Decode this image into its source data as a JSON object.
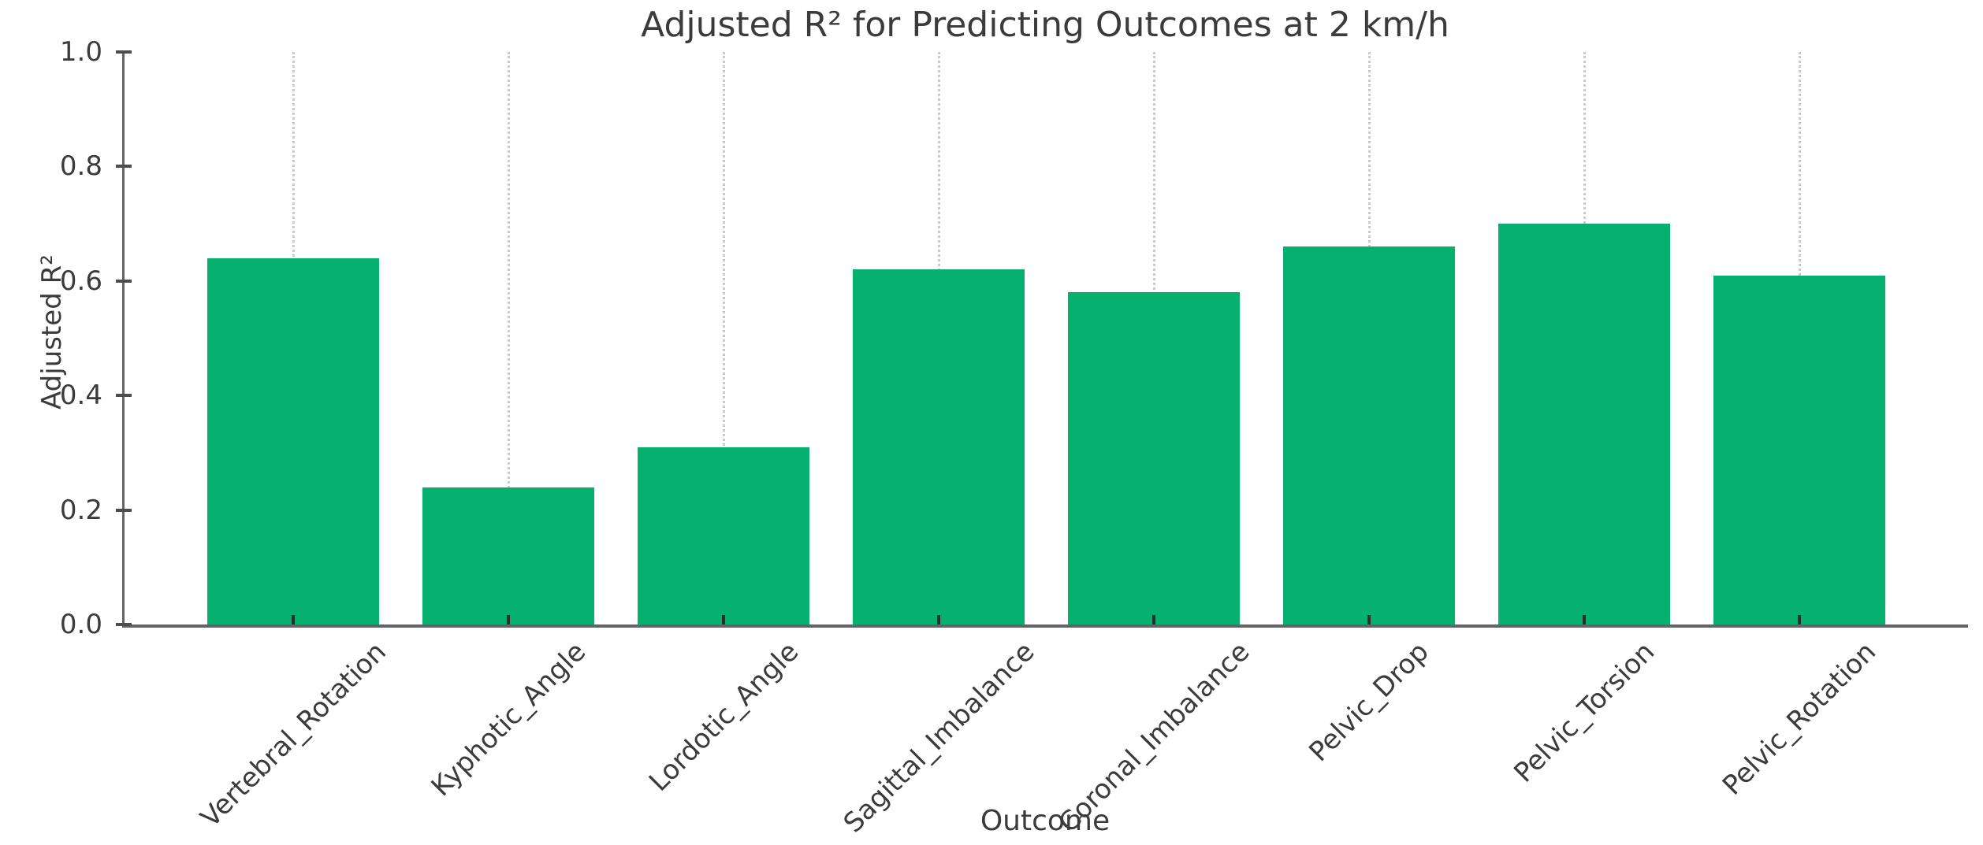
{
  "chart_data": {
    "type": "bar",
    "title": "Adjusted R² for Predicting Outcomes at 2 km/h",
    "xlabel": "Outcome",
    "ylabel": "Adjusted R²",
    "categories": [
      "Vertebral_Rotation",
      "Kyphotic_Angle",
      "Lordotic_Angle",
      "Sagittal_Imbalance",
      "Coronal_Imbalance",
      "Pelvic_Drop",
      "Pelvic_Torsion",
      "Pelvic_Rotation"
    ],
    "values": [
      0.64,
      0.24,
      0.31,
      0.62,
      0.58,
      0.66,
      0.7,
      0.61
    ],
    "ylim": [
      0.0,
      1.0
    ],
    "yticks": [
      0.0,
      0.2,
      0.4,
      0.6,
      0.8,
      1.0
    ],
    "ytick_decimals": 1,
    "bar_color": "#06b16f",
    "gridline_style": "dotted-vertical",
    "gridline_color": "#cbcbcb",
    "legend": "none"
  }
}
